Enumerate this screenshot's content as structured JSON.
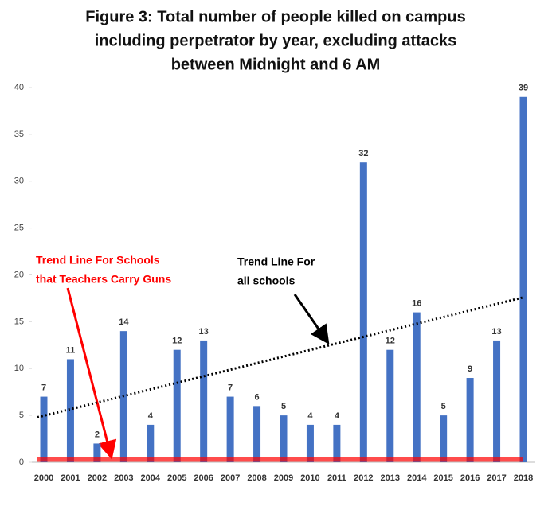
{
  "chart_data": {
    "type": "bar",
    "title_lines": [
      "Figure 3: Total number of people killed on campus",
      "including perpetrator by year, excluding attacks",
      "between Midnight and 6 AM"
    ],
    "categories": [
      "2000",
      "2001",
      "2002",
      "2003",
      "2004",
      "2005",
      "2006",
      "2007",
      "2008",
      "2009",
      "2010",
      "2011",
      "2012",
      "2013",
      "2014",
      "2015",
      "2016",
      "2017",
      "2018"
    ],
    "values": [
      7,
      11,
      2,
      14,
      4,
      12,
      13,
      7,
      6,
      5,
      4,
      4,
      32,
      12,
      16,
      5,
      9,
      13,
      39
    ],
    "color": "#4472c4",
    "ylim": [
      0,
      40
    ],
    "yticks": [
      0,
      5,
      10,
      15,
      20,
      25,
      30,
      35,
      40
    ],
    "grid": false,
    "trend_lines": [
      {
        "label_lines": [
          "Trend Line For Schools",
          "that Teachers Carry Guns"
        ],
        "color": "#ff0000",
        "values": [
          0.3,
          0.3
        ]
      },
      {
        "label_lines": [
          "Trend Line For",
          "all schools"
        ],
        "color": "#000000",
        "values": [
          4.8,
          17.6
        ]
      }
    ]
  }
}
